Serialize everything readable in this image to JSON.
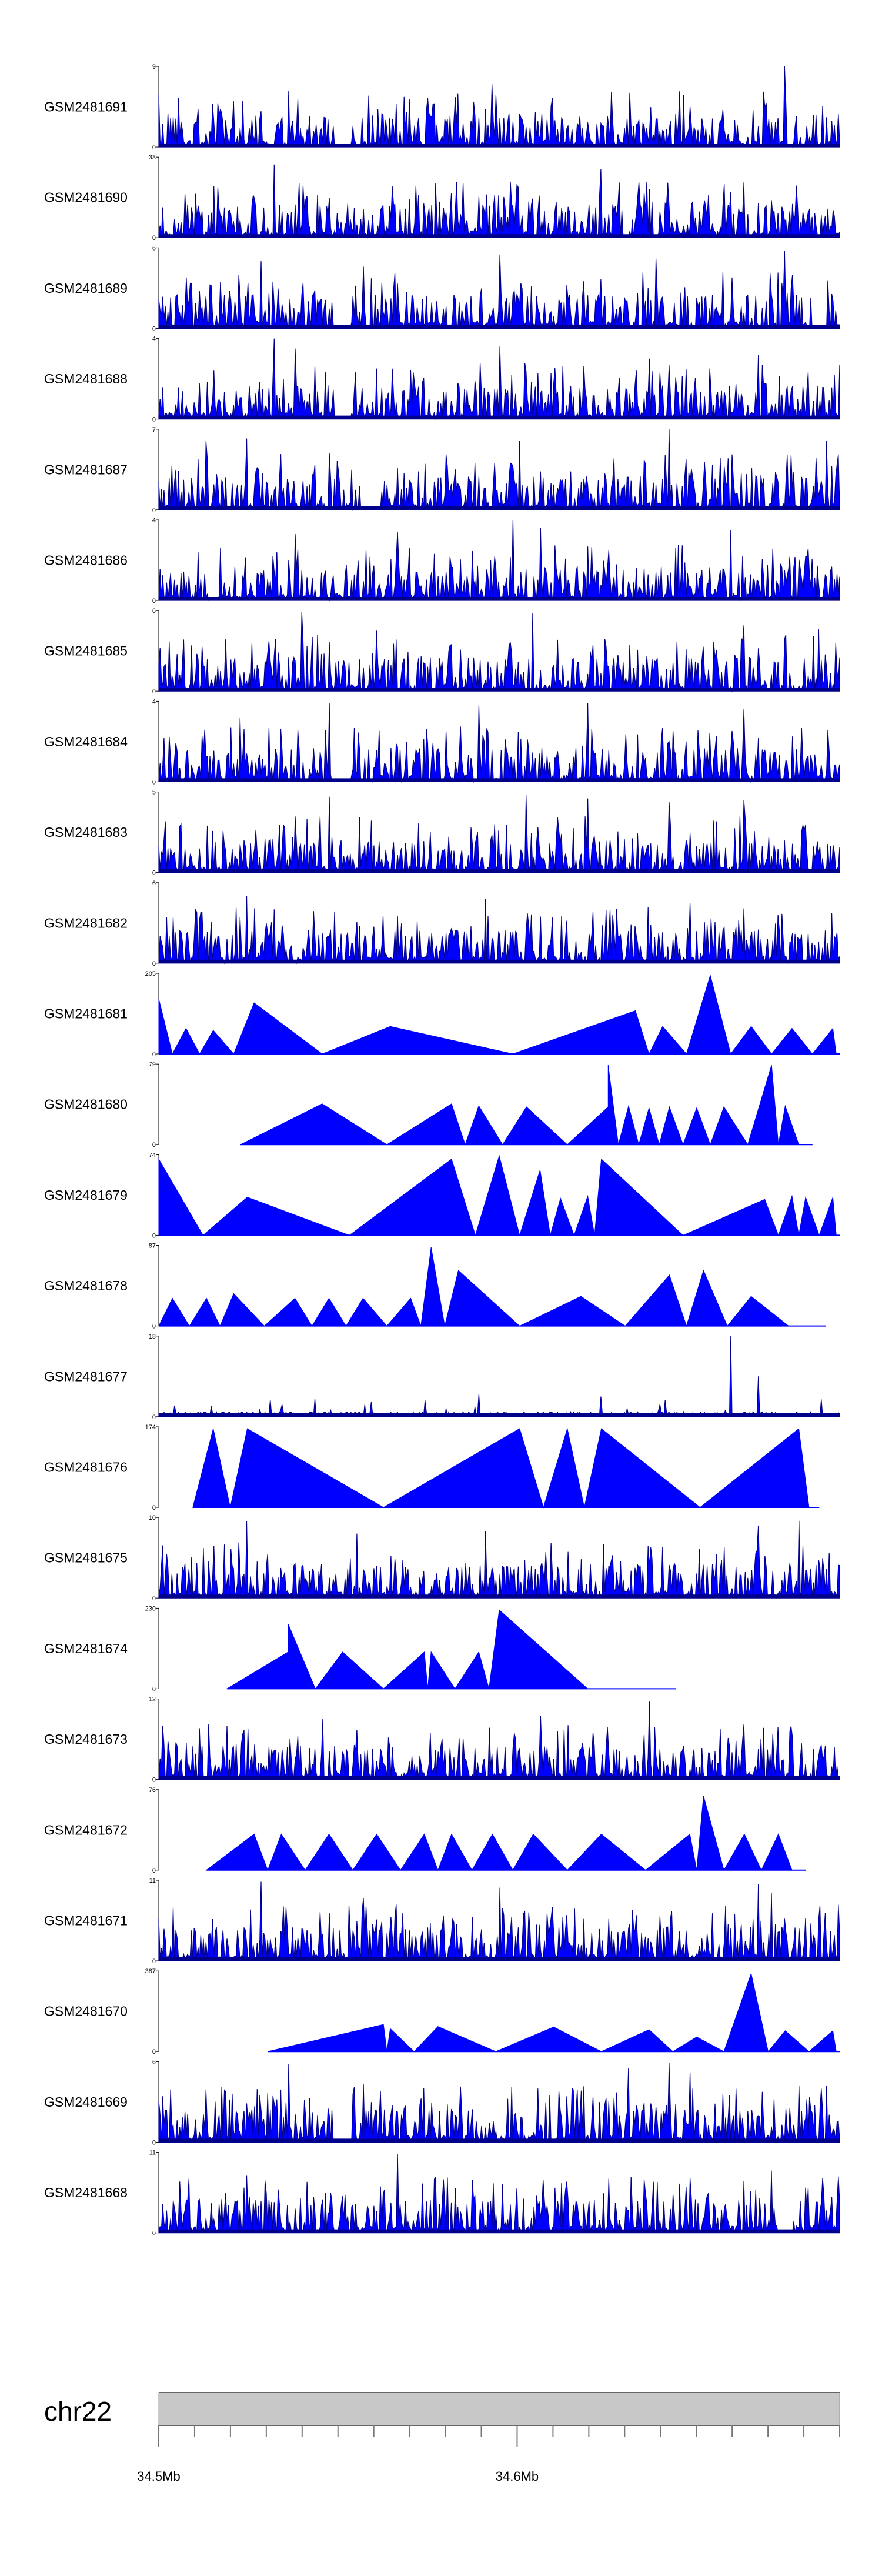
{
  "chart_data": {
    "type": "area",
    "title": "",
    "chromosome": "chr22",
    "axis": {
      "range_mb": [
        34.5,
        34.69
      ],
      "major_ticks": [
        {
          "value": 34.5,
          "label": "34.5Mb"
        },
        {
          "value": 34.6,
          "label": "34.6Mb"
        }
      ],
      "minor_tick_step_mb": 0.01
    },
    "tracks": [
      {
        "name": "GSM2481691",
        "ymax": 9,
        "ymin_label": "0",
        "ymax_label": "9",
        "pattern": "dense",
        "peaks": [
          [
            0.36,
            5.6
          ],
          [
            0.44,
            6
          ],
          [
            0.49,
            7
          ],
          [
            0.92,
            9
          ],
          [
            0.15,
            4
          ],
          [
            0.78,
            4.5
          ]
        ],
        "gaps": [
          0.27
        ],
        "seed": 11
      },
      {
        "name": "GSM2481690",
        "ymax": 33,
        "ymin_label": "0",
        "ymax_label": "33",
        "pattern": "sparse",
        "peaks": [
          [
            0.17,
            30
          ],
          [
            0.65,
            28
          ],
          [
            0.83,
            22
          ],
          [
            0.39,
            14
          ],
          [
            0.55,
            16
          ]
        ],
        "seed": 12
      },
      {
        "name": "GSM2481689",
        "ymax": 6,
        "ymin_label": "0",
        "ymax_label": "6",
        "pattern": "dense",
        "peaks": [
          [
            0.15,
            5
          ],
          [
            0.5,
            5.5
          ],
          [
            0.73,
            5.2
          ],
          [
            0.92,
            5.8
          ],
          [
            0.3,
            4.6
          ]
        ],
        "gaps": [
          0.27,
          0.97
        ],
        "seed": 13
      },
      {
        "name": "GSM2481688",
        "ymax": 4,
        "ymin_label": "0",
        "ymax_label": "4",
        "pattern": "dense",
        "peaks": [
          [
            0.17,
            4
          ],
          [
            0.2,
            3.5
          ],
          [
            0.5,
            3.6
          ],
          [
            0.72,
            3
          ],
          [
            0.88,
            3.2
          ]
        ],
        "gaps": [
          0.27
        ],
        "seed": 14
      },
      {
        "name": "GSM2481687",
        "ymax": 7,
        "ymin_label": "0",
        "ymax_label": "7",
        "pattern": "dense",
        "peaks": [
          [
            0.07,
            6
          ],
          [
            0.13,
            6.2
          ],
          [
            0.53,
            6
          ],
          [
            0.75,
            7
          ],
          [
            0.98,
            6
          ]
        ],
        "gaps": [
          0.31
        ],
        "seed": 15
      },
      {
        "name": "GSM2481686",
        "ymax": 4,
        "ymin_label": "0",
        "ymax_label": "4",
        "pattern": "dense",
        "peaks": [
          [
            0.52,
            4
          ],
          [
            0.56,
            3.6
          ],
          [
            0.35,
            3.4
          ],
          [
            0.84,
            3.5
          ],
          [
            0.2,
            3.3
          ]
        ],
        "gaps": [],
        "seed": 16
      },
      {
        "name": "GSM2481685",
        "ymax": 6,
        "ymin_label": "0",
        "ymax_label": "6",
        "pattern": "dense",
        "peaks": [
          [
            0.21,
            5.9
          ],
          [
            0.55,
            5.8
          ],
          [
            0.32,
            4.5
          ],
          [
            0.86,
            4.9
          ],
          [
            0.97,
            4.6
          ]
        ],
        "gaps": [],
        "seed": 17
      },
      {
        "name": "GSM2481684",
        "ymax": 4,
        "ymin_label": "0",
        "ymax_label": "4",
        "pattern": "dense",
        "peaks": [
          [
            0.25,
            3.9
          ],
          [
            0.47,
            3.8
          ],
          [
            0.63,
            3.9
          ],
          [
            0.86,
            3.6
          ],
          [
            0.12,
            3.2
          ]
        ],
        "gaps": [
          0.27
        ],
        "seed": 18
      },
      {
        "name": "GSM2481683",
        "ymax": 5,
        "ymin_label": "0",
        "ymax_label": "5",
        "pattern": "dense",
        "peaks": [
          [
            0.25,
            4.7
          ],
          [
            0.54,
            4.8
          ],
          [
            0.75,
            4.4
          ],
          [
            0.86,
            4.5
          ],
          [
            0.63,
            4.6
          ]
        ],
        "gaps": [],
        "seed": 19
      },
      {
        "name": "GSM2481682",
        "ymax": 6,
        "ymin_label": "0",
        "ymax_label": "6",
        "pattern": "dense",
        "peaks": [
          [
            0.13,
            5
          ],
          [
            0.48,
            4.8
          ],
          [
            0.78,
            4.5
          ],
          [
            0.33,
            3.5
          ],
          [
            0.91,
            3.6
          ]
        ],
        "gaps": [],
        "seed": 20
      },
      {
        "name": "GSM2481681",
        "ymax": 205,
        "ymin_label": "0",
        "ymax_label": "205",
        "pattern": "tri",
        "peaks": [
          [
            0.0,
            140
          ],
          [
            0.04,
            65
          ],
          [
            0.08,
            60
          ],
          [
            0.14,
            130
          ],
          [
            0.34,
            70
          ],
          [
            0.7,
            110
          ],
          [
            0.74,
            70
          ],
          [
            0.81,
            200
          ],
          [
            0.87,
            70
          ],
          [
            0.93,
            65
          ],
          [
            0.99,
            65
          ]
        ],
        "seed": 21
      },
      {
        "name": "GSM2481680",
        "ymax": 79,
        "ymin_label": "0",
        "ymax_label": "79",
        "pattern": "tri",
        "peaks": [
          [
            0.24,
            40
          ],
          [
            0.43,
            40
          ],
          [
            0.47,
            38
          ],
          [
            0.54,
            37
          ],
          [
            0.66,
            37
          ],
          [
            0.66,
            78
          ],
          [
            0.69,
            38
          ],
          [
            0.72,
            36
          ],
          [
            0.75,
            37
          ],
          [
            0.79,
            36
          ],
          [
            0.83,
            37
          ],
          [
            0.9,
            78
          ],
          [
            0.92,
            38
          ]
        ],
        "start": 0.12,
        "end": 0.96,
        "seed": 22
      },
      {
        "name": "GSM2481679",
        "ymax": 74,
        "ymin_label": "0",
        "ymax_label": "74",
        "pattern": "tri",
        "peaks": [
          [
            0.0,
            70
          ],
          [
            0.13,
            35
          ],
          [
            0.43,
            70
          ],
          [
            0.5,
            73
          ],
          [
            0.56,
            60
          ],
          [
            0.59,
            34
          ],
          [
            0.63,
            36
          ],
          [
            0.65,
            70
          ],
          [
            0.89,
            33
          ],
          [
            0.93,
            36
          ],
          [
            0.95,
            35
          ],
          [
            0.99,
            35
          ]
        ],
        "seed": 23
      },
      {
        "name": "GSM2481678",
        "ymax": 87,
        "ymin_label": "0",
        "ymax_label": "87",
        "pattern": "tri",
        "peaks": [
          [
            0.02,
            30
          ],
          [
            0.07,
            30
          ],
          [
            0.11,
            35
          ],
          [
            0.2,
            30
          ],
          [
            0.25,
            30
          ],
          [
            0.3,
            30
          ],
          [
            0.37,
            30
          ],
          [
            0.4,
            85
          ],
          [
            0.44,
            60
          ],
          [
            0.62,
            32
          ],
          [
            0.75,
            55
          ],
          [
            0.8,
            60
          ],
          [
            0.87,
            32
          ]
        ],
        "end": 0.98,
        "seed": 24
      },
      {
        "name": "GSM2481677",
        "ymax": 18,
        "ymin_label": "0",
        "ymax_label": "18",
        "pattern": "low",
        "peaks": [
          [
            0.84,
            18
          ],
          [
            0.88,
            9
          ],
          [
            0.47,
            5
          ],
          [
            0.23,
            4
          ],
          [
            0.65,
            4.5
          ]
        ],
        "gaps": [],
        "seed": 25
      },
      {
        "name": "GSM2481676",
        "ymax": 174,
        "ymin_label": "0",
        "ymax_label": "174",
        "pattern": "tri",
        "peaks": [
          [
            0.08,
            170
          ],
          [
            0.13,
            170
          ],
          [
            0.53,
            170
          ],
          [
            0.6,
            170
          ],
          [
            0.65,
            170
          ],
          [
            0.94,
            170
          ]
        ],
        "start": 0.05,
        "end": 0.97,
        "seed": 26
      },
      {
        "name": "GSM2481675",
        "ymax": 10,
        "ymin_label": "0",
        "ymax_label": "10",
        "pattern": "dense",
        "peaks": [
          [
            0.13,
            9.5
          ],
          [
            0.29,
            8
          ],
          [
            0.48,
            8.3
          ],
          [
            0.88,
            9
          ],
          [
            0.94,
            9.6
          ]
        ],
        "gaps": [],
        "seed": 27
      },
      {
        "name": "GSM2481674",
        "ymax": 230,
        "ymin_label": "0",
        "ymax_label": "230",
        "pattern": "tri",
        "peaks": [
          [
            0.19,
            105
          ],
          [
            0.19,
            185
          ],
          [
            0.27,
            105
          ],
          [
            0.39,
            105
          ],
          [
            0.4,
            105
          ],
          [
            0.47,
            105
          ],
          [
            0.5,
            225
          ]
        ],
        "start": 0.1,
        "end": 0.76,
        "seed": 28
      },
      {
        "name": "GSM2481673",
        "ymax": 12,
        "ymin_label": "0",
        "ymax_label": "12",
        "pattern": "dense",
        "peaks": [
          [
            0.72,
            11.6
          ],
          [
            0.1,
            8
          ],
          [
            0.24,
            9
          ],
          [
            0.56,
            9.5
          ],
          [
            0.86,
            8.2
          ]
        ],
        "gaps": [],
        "seed": 29
      },
      {
        "name": "GSM2481672",
        "ymax": 76,
        "ymin_label": "0",
        "ymax_label": "76",
        "pattern": "tri",
        "peaks": [
          [
            0.14,
            34
          ],
          [
            0.18,
            34
          ],
          [
            0.25,
            34
          ],
          [
            0.32,
            34
          ],
          [
            0.39,
            34
          ],
          [
            0.43,
            34
          ],
          [
            0.49,
            34
          ],
          [
            0.55,
            34
          ],
          [
            0.65,
            34
          ],
          [
            0.78,
            34
          ],
          [
            0.8,
            70
          ],
          [
            0.86,
            34
          ],
          [
            0.91,
            34
          ]
        ],
        "start": 0.07,
        "end": 0.95,
        "seed": 30
      },
      {
        "name": "GSM2481671",
        "ymax": 11,
        "ymin_label": "0",
        "ymax_label": "11",
        "pattern": "dense",
        "peaks": [
          [
            0.15,
            10.8
          ],
          [
            0.5,
            10
          ],
          [
            0.88,
            10.5
          ],
          [
            0.9,
            9.3
          ],
          [
            0.3,
            8.5
          ]
        ],
        "gaps": [],
        "seed": 31
      },
      {
        "name": "GSM2481670",
        "ymax": 387,
        "ymin_label": "0",
        "ymax_label": "387",
        "pattern": "tri",
        "peaks": [
          [
            0.33,
            130
          ],
          [
            0.34,
            110
          ],
          [
            0.41,
            120
          ],
          [
            0.58,
            118
          ],
          [
            0.72,
            105
          ],
          [
            0.79,
            70
          ],
          [
            0.87,
            375
          ],
          [
            0.92,
            100
          ],
          [
            0.99,
            100
          ]
        ],
        "start": 0.16,
        "seed": 32
      },
      {
        "name": "GSM2481669",
        "ymax": 6,
        "ymin_label": "0",
        "ymax_label": "6",
        "pattern": "dense",
        "peaks": [
          [
            0.19,
            5.8
          ],
          [
            0.69,
            5.5
          ],
          [
            0.75,
            5.9
          ],
          [
            0.78,
            5.2
          ],
          [
            0.3,
            4.3
          ]
        ],
        "gaps": [
          0.27
        ],
        "seed": 33
      },
      {
        "name": "GSM2481668",
        "ymax": 11,
        "ymin_label": "0",
        "ymax_label": "11",
        "pattern": "dense",
        "peaks": [
          [
            0.35,
            10.8
          ],
          [
            0.9,
            8.5
          ],
          [
            0.6,
            7
          ],
          [
            0.78,
            7.5
          ],
          [
            0.13,
            7.8
          ]
        ],
        "gaps": [
          0.92
        ],
        "seed": 34
      }
    ]
  }
}
